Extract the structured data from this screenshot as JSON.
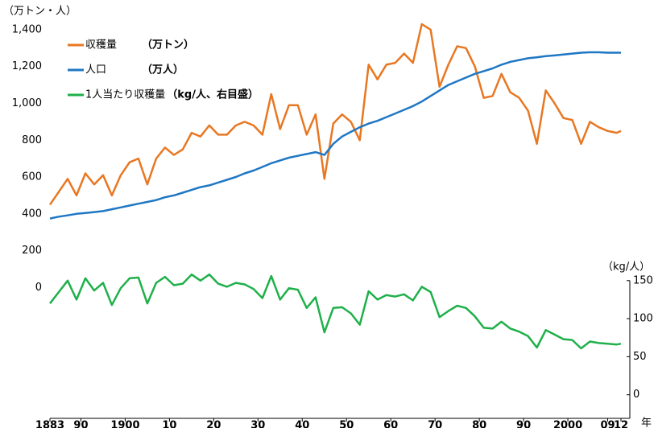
{
  "chart_data": {
    "type": "line",
    "y_label": "（万トン・人）",
    "y2_label": "（kg/人）",
    "x_label": "年",
    "x": [
      1883,
      1885,
      1887,
      1889,
      1891,
      1893,
      1895,
      1897,
      1899,
      1901,
      1903,
      1905,
      1907,
      1909,
      1911,
      1913,
      1915,
      1917,
      1919,
      1921,
      1923,
      1925,
      1927,
      1929,
      1931,
      1933,
      1935,
      1937,
      1939,
      1941,
      1943,
      1945,
      1947,
      1949,
      1951,
      1953,
      1955,
      1957,
      1959,
      1961,
      1963,
      1965,
      1967,
      1969,
      1971,
      1973,
      1975,
      1977,
      1979,
      1981,
      1983,
      1985,
      1987,
      1989,
      1991,
      1993,
      1995,
      1997,
      1999,
      2001,
      2003,
      2005,
      2007,
      2009,
      2011,
      2012
    ],
    "xlim": [
      1883,
      2012
    ],
    "xticks": [
      {
        "value": 1883,
        "label": "1883"
      },
      {
        "value": 1890,
        "label": "90"
      },
      1900,
      {
        "value": 1910,
        "label": "10"
      },
      {
        "value": 1920,
        "label": "20"
      },
      {
        "value": 1930,
        "label": "30"
      },
      {
        "value": 1940,
        "label": "40"
      },
      {
        "value": 1950,
        "label": "50"
      },
      {
        "value": 1960,
        "label": "60"
      },
      {
        "value": 1970,
        "label": "70"
      },
      {
        "value": 1980,
        "label": "80"
      },
      {
        "value": 1990,
        "label": "90"
      },
      2000,
      {
        "value": 2009,
        "label": "09"
      },
      {
        "value": 2012,
        "label": "12"
      }
    ],
    "ylim": [
      -710,
      1430
    ],
    "yticks": [
      0,
      200,
      400,
      600,
      800,
      {
        "value": 1000,
        "label": "1,000"
      },
      {
        "value": 1200,
        "label": "1,200"
      },
      {
        "value": 1400,
        "label": "1,400"
      }
    ],
    "y2lim": [
      -31,
      487
    ],
    "y2ticks": [
      0,
      50,
      100,
      150
    ],
    "series": [
      {
        "name": "収穫量",
        "unit": "（万トン）",
        "color": "#e87722",
        "values": [
          450,
          520,
          590,
          500,
          620,
          560,
          610,
          500,
          610,
          680,
          700,
          560,
          700,
          760,
          720,
          750,
          840,
          820,
          880,
          830,
          830,
          880,
          900,
          880,
          830,
          1050,
          860,
          990,
          990,
          830,
          940,
          590,
          890,
          940,
          900,
          800,
          1210,
          1130,
          1210,
          1220,
          1270,
          1220,
          1430,
          1400,
          1090,
          1210,
          1310,
          1300,
          1200,
          1030,
          1040,
          1160,
          1060,
          1030,
          960,
          780,
          1070,
          1000,
          920,
          910,
          780,
          900,
          870,
          850,
          840,
          850
        ]
      },
      {
        "name": "人口",
        "unit": "（万人）",
        "color": "#1f77c4",
        "values": [
          375,
          385,
          392,
          400,
          405,
          410,
          415,
          425,
          435,
          445,
          455,
          465,
          475,
          490,
          500,
          515,
          530,
          545,
          555,
          570,
          585,
          600,
          620,
          635,
          655,
          675,
          690,
          705,
          715,
          725,
          735,
          720,
          780,
          820,
          845,
          870,
          890,
          905,
          925,
          945,
          965,
          985,
          1010,
          1040,
          1070,
          1100,
          1120,
          1140,
          1160,
          1175,
          1190,
          1210,
          1225,
          1235,
          1245,
          1250,
          1256,
          1260,
          1265,
          1270,
          1275,
          1277,
          1277,
          1275,
          1275,
          1275
        ]
      },
      {
        "name": "1人当たり収穫量",
        "unit": "（kg/人、右目盛）",
        "color": "#1fb04a",
        "axis": "y2",
        "values": [
          120,
          135,
          150,
          125,
          153,
          137,
          147,
          118,
          140,
          153,
          154,
          120,
          147,
          155,
          144,
          146,
          158,
          150,
          158,
          146,
          142,
          147,
          145,
          139,
          127,
          156,
          125,
          140,
          138,
          114,
          128,
          82,
          114,
          115,
          107,
          92,
          136,
          125,
          131,
          129,
          132,
          124,
          142,
          135,
          102,
          110,
          117,
          114,
          103,
          88,
          87,
          96,
          87,
          83,
          77,
          62,
          85,
          79,
          73,
          72,
          61,
          70,
          68,
          67,
          66,
          67
        ]
      }
    ]
  }
}
